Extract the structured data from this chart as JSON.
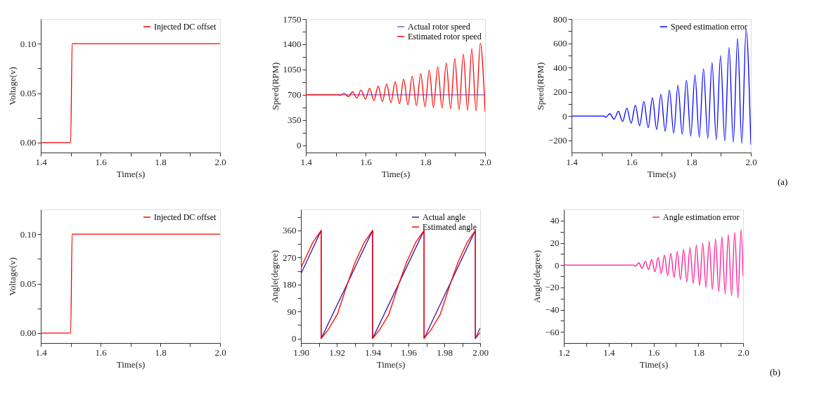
{
  "chart_data": [
    {
      "type": "line",
      "xlabel": "Time(s)",
      "ylabel": "Voltage(v)",
      "xlim": [
        1.4,
        2.0
      ],
      "ylim": [
        -0.01,
        0.125
      ],
      "legend": "top right",
      "xticks": [
        1.4,
        {
          "value": 1.5,
          "label": null
        },
        1.6,
        {
          "value": 1.7,
          "label": null
        },
        1.8,
        {
          "value": 1.9,
          "label": null
        },
        {
          "value": 2.0,
          "label": "2.0"
        }
      ],
      "yticks": [
        {
          "value": 0,
          "label": "0.00"
        },
        {
          "value": 0.025,
          "label": null
        },
        {
          "value": 0.05,
          "label": "0.05"
        },
        {
          "value": 0.075,
          "label": null
        },
        {
          "value": 0.1,
          "label": "0.10"
        }
      ],
      "series": [
        {
          "name": "Injected DC offset",
          "color": "#ff0000",
          "x": [
            1.4,
            1.5,
            1.505,
            2.0
          ],
          "values": [
            0,
            0,
            0.1,
            0.1
          ]
        }
      ]
    },
    {
      "type": "line",
      "xlabel": "Time(s)",
      "ylabel": "Speed(RPM)",
      "xlim": [
        1.4,
        2.0
      ],
      "ylim": [
        -100,
        1750
      ],
      "legend": "top right",
      "xticks": [
        1.4,
        {
          "value": 1.5,
          "label": null
        },
        1.6,
        {
          "value": 1.7,
          "label": null
        },
        1.8,
        {
          "value": 1.9,
          "label": null
        },
        {
          "value": 2.0,
          "label": "2.0"
        }
      ],
      "yticks": [
        0,
        {
          "value": 175,
          "label": null
        },
        350,
        {
          "value": 525,
          "label": null
        },
        700,
        {
          "value": 875,
          "label": null
        },
        1050,
        {
          "value": 1225,
          "label": null
        },
        1400,
        {
          "value": 1575,
          "label": null
        },
        1750
      ],
      "series": [
        {
          "name": "Actual rotor speed",
          "color": "#7f5fbf",
          "x": [
            1.4,
            2.0
          ],
          "values": [
            700,
            700
          ]
        },
        {
          "name": "Estimated rotor speed",
          "color": "#ff0000",
          "x": [
            1.4,
            1.51,
            1.514,
            1.528,
            1.5423,
            1.5565,
            1.5708,
            1.585,
            1.5993,
            1.6135,
            1.6278,
            1.642,
            1.6563,
            1.6705,
            1.6848,
            1.699,
            1.7133,
            1.7275,
            1.7418,
            1.756,
            1.7703,
            1.7845,
            1.7988,
            1.813,
            1.8273,
            1.8415,
            1.8558,
            1.87,
            1.8843,
            1.8985,
            1.9128,
            1.927,
            1.9413,
            1.9555,
            1.9698,
            1.984,
            2.0
          ],
          "values": [
            700,
            700,
            690,
            720,
            675,
            740,
            655,
            765,
            640,
            790,
            620,
            820,
            605,
            850,
            590,
            880,
            575,
            915,
            560,
            955,
            550,
            995,
            535,
            1040,
            525,
            1090,
            515,
            1140,
            505,
            1200,
            495,
            1265,
            485,
            1340,
            475,
            1415,
            465
          ]
        }
      ]
    },
    {
      "type": "line",
      "xlabel": "Time(s)",
      "ylabel": "Speed(RPM)",
      "xlim": [
        1.4,
        2.0
      ],
      "ylim": [
        -300,
        800
      ],
      "legend": "top right",
      "annotations": [
        "(a)"
      ],
      "xticks": [
        1.4,
        {
          "value": 1.5,
          "label": null
        },
        1.6,
        {
          "value": 1.7,
          "label": null
        },
        1.8,
        {
          "value": 1.9,
          "label": null
        },
        {
          "value": 2.0,
          "label": "2.0"
        }
      ],
      "yticks": [
        {
          "value": -200,
          "label": "−200"
        },
        {
          "value": -100,
          "label": null
        },
        0,
        {
          "value": 100,
          "label": null
        },
        200,
        {
          "value": 300,
          "label": null
        },
        400,
        {
          "value": 500,
          "label": null
        },
        600,
        {
          "value": 700,
          "label": null
        },
        800
      ],
      "series": [
        {
          "name": "Speed estimation error",
          "color": "#0000ff",
          "x": [
            1.4,
            1.51,
            1.514,
            1.528,
            1.5423,
            1.5565,
            1.5708,
            1.585,
            1.5993,
            1.6135,
            1.6278,
            1.642,
            1.6563,
            1.6705,
            1.6848,
            1.699,
            1.7133,
            1.7275,
            1.7418,
            1.756,
            1.7703,
            1.7845,
            1.7988,
            1.813,
            1.8273,
            1.8415,
            1.8558,
            1.87,
            1.8843,
            1.8985,
            1.9128,
            1.927,
            1.9413,
            1.9555,
            1.9698,
            1.984,
            2.0
          ],
          "values": [
            0,
            0,
            -10,
            20,
            -25,
            40,
            -45,
            65,
            -60,
            90,
            -80,
            120,
            -95,
            150,
            -110,
            180,
            -125,
            215,
            -140,
            255,
            -150,
            295,
            -165,
            340,
            -175,
            390,
            -185,
            440,
            -195,
            500,
            -205,
            565,
            -215,
            640,
            -225,
            715,
            -235
          ]
        }
      ]
    },
    {
      "type": "line",
      "xlabel": "Time(s)",
      "ylabel": "Voltage(v)",
      "xlim": [
        1.4,
        2.0
      ],
      "ylim": [
        -0.01,
        0.125
      ],
      "legend": "top right",
      "xticks": [
        1.4,
        {
          "value": 1.5,
          "label": null
        },
        1.6,
        {
          "value": 1.7,
          "label": null
        },
        1.8,
        {
          "value": 1.9,
          "label": null
        },
        {
          "value": 2.0,
          "label": "2.0"
        }
      ],
      "yticks": [
        {
          "value": 0,
          "label": "0.00"
        },
        {
          "value": 0.025,
          "label": null
        },
        {
          "value": 0.05,
          "label": "0.05"
        },
        {
          "value": 0.075,
          "label": null
        },
        {
          "value": 0.1,
          "label": "0.10"
        }
      ],
      "series": [
        {
          "name": "Injected DC offset",
          "color": "#ff0000",
          "x": [
            1.4,
            1.5,
            1.505,
            2.0
          ],
          "values": [
            0,
            0,
            0.1,
            0.1
          ]
        }
      ]
    },
    {
      "type": "line",
      "xlabel": "Time(s)",
      "ylabel": "Angle(degree)",
      "xlim": [
        1.9,
        2.0
      ],
      "ylim": [
        -15,
        430
      ],
      "legend": "top right",
      "xticks": [
        {
          "value": 1.9,
          "label": "1.90"
        },
        {
          "value": 1.91,
          "label": null
        },
        1.92,
        {
          "value": 1.93,
          "label": null
        },
        1.94,
        {
          "value": 1.95,
          "label": null
        },
        1.96,
        {
          "value": 1.97,
          "label": null
        },
        1.98,
        {
          "value": 1.99,
          "label": null
        },
        {
          "value": 2.0,
          "label": "2.00"
        }
      ],
      "yticks": [
        0,
        {
          "value": 45,
          "label": null
        },
        90,
        {
          "value": 135,
          "label": null
        },
        180,
        {
          "value": 225,
          "label": null
        },
        270,
        {
          "value": 315,
          "label": null
        },
        360,
        {
          "value": 405,
          "label": null
        }
      ],
      "series": [
        {
          "name": "Actual angle",
          "color": "#3a1a9e",
          "x": [
            1.9,
            1.9113,
            1.9113,
            1.94,
            1.94,
            1.9687,
            1.9687,
            1.9973,
            1.9973,
            2.0
          ],
          "values": [
            215,
            360,
            0,
            360,
            0,
            360,
            0,
            360,
            0,
            35
          ]
        },
        {
          "name": "Estimated angle",
          "color": "#ff0000",
          "x": [
            1.9,
            1.9066,
            1.9113,
            1.9113,
            1.9153,
            1.9203,
            1.9258,
            1.9303,
            1.9353,
            1.94,
            1.94,
            1.944,
            1.949,
            1.9545,
            1.959,
            1.964,
            1.9687,
            1.9687,
            1.9727,
            1.9777,
            1.9832,
            1.9877,
            1.9927,
            1.9973,
            1.9973,
            2.0
          ],
          "values": [
            235,
            320,
            360,
            0,
            30,
            80,
            180,
            255,
            320,
            360,
            0,
            30,
            80,
            180,
            255,
            320,
            360,
            0,
            30,
            80,
            180,
            255,
            320,
            360,
            0,
            20
          ]
        }
      ]
    },
    {
      "type": "line",
      "xlabel": "Time(s)",
      "ylabel": "Angle(degree)",
      "xlim": [
        1.2,
        2.0
      ],
      "ylim": [
        -70,
        50
      ],
      "legend": "top right",
      "annotations": [
        "(b)"
      ],
      "xticks": [
        1.2,
        {
          "value": 1.3,
          "label": null
        },
        1.4,
        {
          "value": 1.5,
          "label": null
        },
        1.6,
        {
          "value": 1.7,
          "label": null
        },
        1.8,
        {
          "value": 1.9,
          "label": null
        },
        {
          "value": 2.0,
          "label": "2.0"
        }
      ],
      "yticks": [
        {
          "value": -60,
          "label": "−60"
        },
        {
          "value": -50,
          "label": null
        },
        {
          "value": -40,
          "label": "−40"
        },
        {
          "value": -30,
          "label": null
        },
        {
          "value": -20,
          "label": "−20"
        },
        {
          "value": -10,
          "label": null
        },
        0,
        {
          "value": 10,
          "label": null
        },
        20,
        {
          "value": 30,
          "label": null
        },
        40
      ],
      "series": [
        {
          "name": "Angle estimation error",
          "color": "#ff1493",
          "x": [
            1.2,
            1.51,
            1.52,
            1.535,
            1.5493,
            1.5635,
            1.5778,
            1.592,
            1.6063,
            1.6205,
            1.6348,
            1.649,
            1.6633,
            1.6775,
            1.6918,
            1.706,
            1.7203,
            1.7345,
            1.7488,
            1.763,
            1.7773,
            1.7915,
            1.8058,
            1.82,
            1.8343,
            1.8485,
            1.8628,
            1.877,
            1.8913,
            1.9055,
            1.9198,
            1.934,
            1.9483,
            1.9625,
            1.9768,
            1.991,
            2.0
          ],
          "values": [
            0,
            0,
            -1,
            2,
            -3,
            3.5,
            -4,
            5,
            -6,
            7,
            -7.5,
            9,
            -9.5,
            10.5,
            -11,
            12,
            -13,
            14,
            -15,
            16,
            -16.5,
            18,
            -18.5,
            19.5,
            -20,
            21.5,
            -22,
            23.5,
            -24,
            25.5,
            -26,
            27.5,
            -27.5,
            29.5,
            -29.5,
            32,
            -10
          ]
        }
      ]
    }
  ]
}
